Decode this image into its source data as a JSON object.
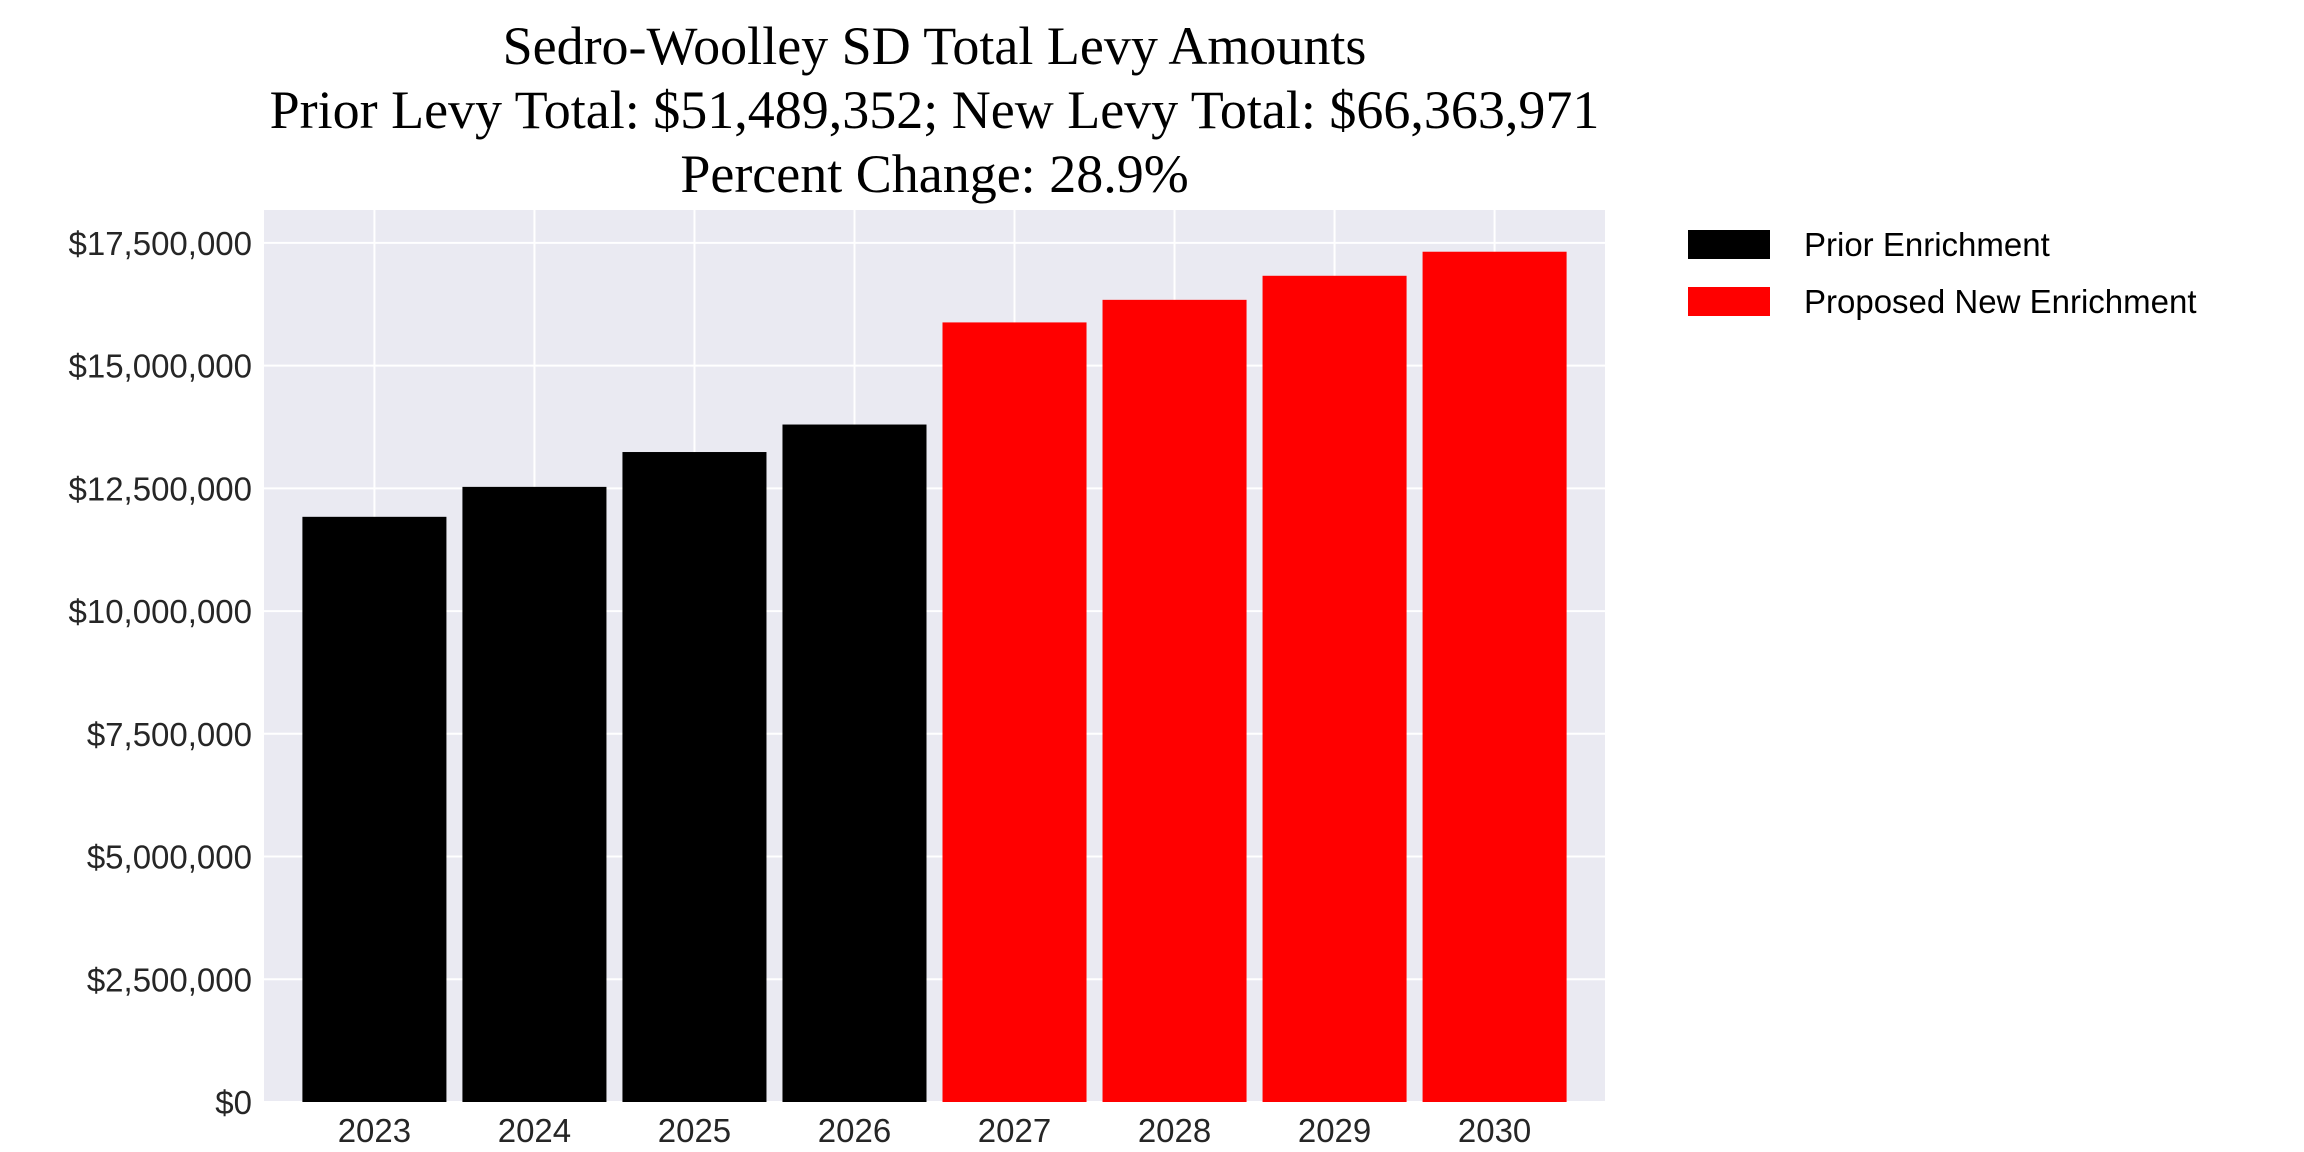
{
  "chart_data": {
    "type": "bar",
    "title": "Sedro-Woolley SD Total Levy Amounts",
    "subtitle_lines": [
      "Prior Levy Total:  $51,489,352; New Levy Total: $66,363,971",
      "Percent Change: 28.9%"
    ],
    "xlabel": "",
    "ylabel": "",
    "categories": [
      "2023",
      "2024",
      "2025",
      "2026",
      "2027",
      "2028",
      "2029",
      "2030"
    ],
    "values": [
      11920000,
      12530000,
      13240000,
      13800000,
      15880000,
      16340000,
      16830000,
      17320000
    ],
    "bar_series": [
      "Prior Enrichment",
      "Prior Enrichment",
      "Prior Enrichment",
      "Prior Enrichment",
      "Proposed New Enrichment",
      "Proposed New Enrichment",
      "Proposed New Enrichment",
      "Proposed New Enrichment"
    ],
    "series": [
      {
        "name": "Prior Enrichment",
        "color": "#000000"
      },
      {
        "name": "Proposed New Enrichment",
        "color": "#ff0000"
      }
    ],
    "ylim": [
      0,
      18170000
    ],
    "yticks": [
      0,
      2500000,
      5000000,
      7500000,
      10000000,
      12500000,
      15000000,
      17500000
    ],
    "ytick_labels": [
      "$0",
      "$2,500,000",
      "$5,000,000",
      "$7,500,000",
      "$10,000,000",
      "$12,500,000",
      "$15,000,000",
      "$17,500,000"
    ],
    "grid": true,
    "plot_background": "#eaeaf2",
    "legend_position": "outside-top-right"
  }
}
